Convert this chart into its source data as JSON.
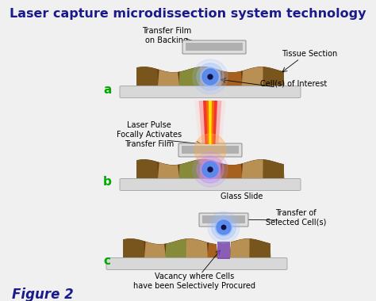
{
  "title": "Laser capture microdissection system technology",
  "title_color": "#1a1a8c",
  "title_fontsize": 11.5,
  "bg_color": "#f0f0f0",
  "figure_label": "Figure 2",
  "figure_label_color": "#1a1a8c",
  "figure_label_fontsize": 12,
  "panel_labels": [
    "a",
    "b",
    "c"
  ],
  "panel_label_color": "#00aa00",
  "panel_label_fontsize": 11,
  "annotations_a": {
    "transfer_film": "Transfer Film\non Backing",
    "tissue_section": "Tissue Section",
    "cell_of_interest": "Cell(s) of Interest"
  },
  "annotations_b": {
    "laser_pulse": "Laser Pulse\nFocally Activates\nTransfer Film",
    "glass_slide": "Glass Slide"
  },
  "annotations_c": {
    "transfer_of": "Transfer of\nSelected Cell(s)",
    "vacancy": "Vacancy where Cells\nhave been Selectively Procured"
  },
  "slide_color": "#d8d8d8",
  "slide_edge": "#aaaaaa",
  "tissue_colors": [
    "#7a5a20",
    "#c8a060",
    "#8a9a40",
    "#c8a060",
    "#b06820",
    "#c8a060",
    "#7a5a20"
  ],
  "tissue_edge": "#6b3a10",
  "cell_blue": "#5588ee",
  "cell_glow": "#99bbff",
  "cell_purple_glow": "#bb88ff",
  "cell_dark": "#111144",
  "film_gray": "#b0b0b0",
  "film_light": "#dedede",
  "laser_red": "#ee1100",
  "laser_orange": "#ff7700",
  "laser_yellow": "#ffee00",
  "purple_cell": "#9966cc",
  "vacancy_purple": "#7744aa"
}
